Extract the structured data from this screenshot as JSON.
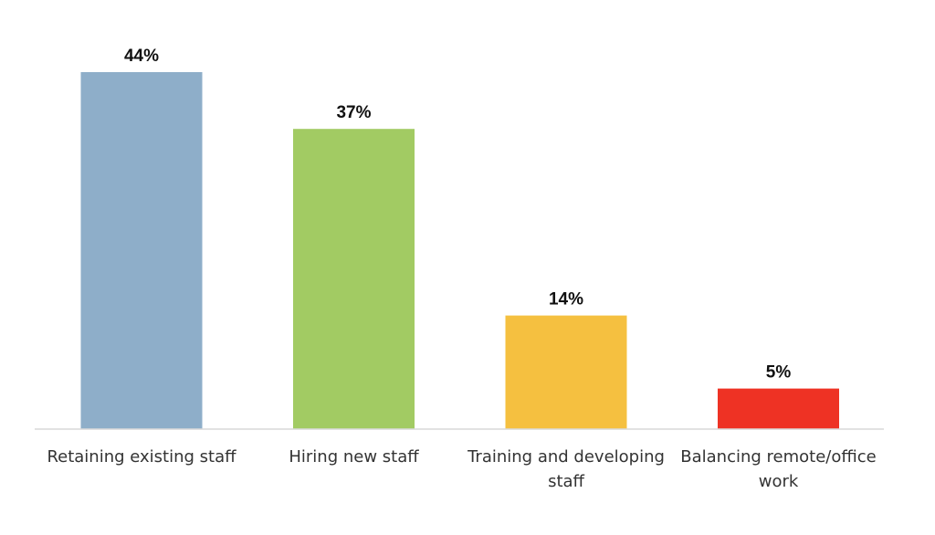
{
  "chart_data": {
    "type": "bar",
    "categories": [
      "Retaining existing staff",
      "Hiring new staff",
      "Training and developing staff",
      "Balancing remote/office work"
    ],
    "category_lines": [
      [
        "Retaining existing staff"
      ],
      [
        "Hiring new staff"
      ],
      [
        "Training and developing",
        "staff"
      ],
      [
        "Balancing remote/office",
        "work"
      ]
    ],
    "values": [
      44,
      37,
      14,
      5
    ],
    "value_labels": [
      "44%",
      "37%",
      "14%",
      "5%"
    ],
    "colors": [
      "#8eaec9",
      "#a2cb63",
      "#f5c040",
      "#ee3224"
    ],
    "ylim": [
      0,
      44
    ],
    "grid": false,
    "legend": "none",
    "title": "",
    "xlabel": "",
    "ylabel": ""
  }
}
